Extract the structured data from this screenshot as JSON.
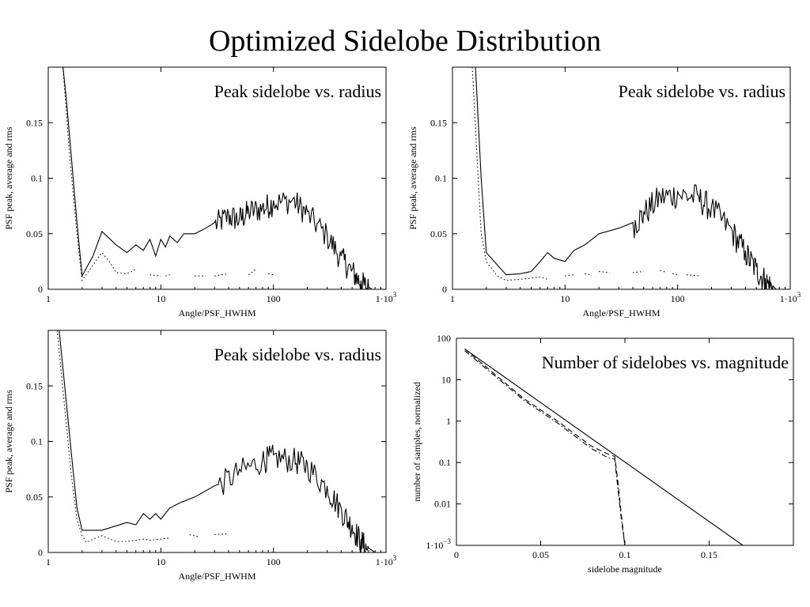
{
  "page": {
    "title": "Optimized Sidelobe Distribution"
  },
  "chart_data": [
    {
      "type": "line",
      "title": "Peak sidelobe vs. radius",
      "xlabel": "Angle/PSF_HWHM",
      "ylabel": "PSF peak, average and rms",
      "x_scale": "log",
      "xlim": [
        1,
        1000
      ],
      "ylim": [
        0,
        0.2
      ],
      "x_ticks": [
        1,
        10,
        100,
        1000
      ],
      "x_tick_labels": [
        "1",
        "10",
        "100",
        "1·10"
      ],
      "x_tick_exponents": [
        "",
        "",
        "",
        "3"
      ],
      "y_ticks": [
        0,
        0.05,
        0.1,
        0.15
      ],
      "y_tick_labels": [
        "0",
        "0.05",
        "0.1",
        "0.15"
      ],
      "grid": false,
      "series": [
        {
          "style": "solid",
          "values": [
            [
              1.35,
              0.2
            ],
            [
              1.45,
              0.17
            ],
            [
              1.6,
              0.12
            ],
            [
              1.8,
              0.06
            ],
            [
              2,
              0.012
            ],
            [
              2.5,
              0.03
            ],
            [
              3,
              0.052
            ],
            [
              4,
              0.04
            ],
            [
              5,
              0.033
            ],
            [
              6,
              0.04
            ],
            [
              7,
              0.035
            ],
            [
              8,
              0.045
            ],
            [
              9,
              0.03
            ],
            [
              10,
              0.045
            ],
            [
              11,
              0.038
            ],
            [
              12,
              0.048
            ],
            [
              14,
              0.042
            ],
            [
              16,
              0.05
            ],
            [
              20,
              0.05
            ],
            [
              25,
              0.055
            ],
            [
              30,
              0.06
            ],
            [
              40,
              0.068
            ],
            [
              50,
              0.065
            ],
            [
              60,
              0.072
            ],
            [
              80,
              0.075
            ],
            [
              100,
              0.08
            ],
            [
              150,
              0.082
            ],
            [
              200,
              0.07
            ],
            [
              300,
              0.05
            ],
            [
              400,
              0.03
            ],
            [
              500,
              0.018
            ],
            [
              600,
              0.008
            ],
            [
              700,
              0.002
            ],
            [
              750,
              0
            ]
          ],
          "noise": {
            "from": 30,
            "to": 700,
            "amplitude": 0.012
          }
        },
        {
          "style": "dotted",
          "values": [
            [
              1.35,
              0.2
            ],
            [
              1.55,
              0.12
            ],
            [
              1.8,
              0.05
            ],
            [
              2,
              0.008
            ],
            [
              2.5,
              0.022
            ],
            [
              3,
              0.033
            ],
            [
              3.5,
              0.025
            ],
            [
              4,
              0.015
            ],
            [
              5,
              0.014
            ],
            [
              6,
              0.018
            ]
          ],
          "fragments": [
            [
              [
                8,
                0.013
              ],
              [
                10,
                0.012
              ]
            ],
            [
              [
                11,
                0.012
              ],
              [
                12,
                0.013
              ]
            ],
            [
              [
                20,
                0.012
              ],
              [
                25,
                0.012
              ]
            ],
            [
              [
                30,
                0.012
              ],
              [
                40,
                0.014
              ]
            ],
            [
              [
                60,
                0.013
              ],
              [
                70,
                0.018
              ]
            ],
            [
              [
                90,
                0.014
              ],
              [
                100,
                0.013
              ]
            ]
          ]
        }
      ]
    },
    {
      "type": "line",
      "title": "Peak sidelobe vs. radius",
      "xlabel": "Angle/PSF_HWHM",
      "ylabel": "PSF peak, average and rms",
      "x_scale": "log",
      "xlim": [
        1,
        1000
      ],
      "ylim": [
        0,
        0.2
      ],
      "x_ticks": [
        1,
        10,
        100,
        1000
      ],
      "x_tick_labels": [
        "1",
        "10",
        "100",
        "1·10"
      ],
      "x_tick_exponents": [
        "",
        "",
        "",
        "3"
      ],
      "y_ticks": [
        0,
        0.05,
        0.1,
        0.15
      ],
      "y_tick_labels": [
        "0",
        "0.05",
        "0.1",
        "0.15"
      ],
      "grid": false,
      "series": [
        {
          "style": "solid",
          "values": [
            [
              1.6,
              0.2
            ],
            [
              1.8,
              0.1
            ],
            [
              2,
              0.033
            ],
            [
              2.5,
              0.022
            ],
            [
              3,
              0.013
            ],
            [
              4,
              0.014
            ],
            [
              5,
              0.016
            ],
            [
              6,
              0.025
            ],
            [
              7,
              0.033
            ],
            [
              8,
              0.028
            ],
            [
              10,
              0.025
            ],
            [
              12,
              0.035
            ],
            [
              15,
              0.04
            ],
            [
              20,
              0.05
            ],
            [
              30,
              0.055
            ],
            [
              40,
              0.06
            ],
            [
              50,
              0.07
            ],
            [
              70,
              0.085
            ],
            [
              100,
              0.088
            ],
            [
              150,
              0.085
            ],
            [
              200,
              0.075
            ],
            [
              300,
              0.055
            ],
            [
              400,
              0.035
            ],
            [
              500,
              0.02
            ],
            [
              600,
              0.01
            ],
            [
              700,
              0.003
            ],
            [
              750,
              0
            ]
          ],
          "noise": {
            "from": 40,
            "to": 700,
            "amplitude": 0.013
          }
        },
        {
          "style": "dotted",
          "values": [
            [
              1.5,
              0.2
            ],
            [
              1.65,
              0.12
            ],
            [
              1.8,
              0.05
            ],
            [
              2,
              0.025
            ],
            [
              2.5,
              0.012
            ],
            [
              3,
              0.008
            ],
            [
              4,
              0.009
            ],
            [
              5,
              0.01
            ],
            [
              6,
              0.011
            ],
            [
              7,
              0.009
            ]
          ],
          "fragments": [
            [
              [
                10,
                0.012
              ],
              [
                12,
                0.013
              ]
            ],
            [
              [
                15,
                0.014
              ],
              [
                17,
                0.013
              ]
            ],
            [
              [
                20,
                0.016
              ],
              [
                25,
                0.015
              ]
            ],
            [
              [
                40,
                0.015
              ],
              [
                50,
                0.016
              ]
            ],
            [
              [
                70,
                0.017
              ],
              [
                80,
                0.015
              ]
            ],
            [
              [
                90,
                0.014
              ],
              [
                100,
                0.013
              ]
            ],
            [
              [
                120,
                0.013
              ],
              [
                160,
                0.012
              ]
            ]
          ]
        }
      ]
    },
    {
      "type": "line",
      "title": "Peak sidelobe vs. radius",
      "xlabel": "Angle/PSF_HWHM",
      "ylabel": "PSF peak, average and rms",
      "x_scale": "log",
      "xlim": [
        1,
        1000
      ],
      "ylim": [
        0,
        0.2
      ],
      "x_ticks": [
        1,
        10,
        100,
        1000
      ],
      "x_tick_labels": [
        "1",
        "10",
        "100",
        "1·10"
      ],
      "x_tick_exponents": [
        "",
        "",
        "",
        "3"
      ],
      "y_ticks": [
        0,
        0.05,
        0.1,
        0.15
      ],
      "y_tick_labels": [
        "0",
        "0.05",
        "0.1",
        "0.15"
      ],
      "grid": false,
      "series": [
        {
          "style": "solid",
          "values": [
            [
              1.25,
              0.2
            ],
            [
              1.4,
              0.15
            ],
            [
              1.6,
              0.09
            ],
            [
              1.8,
              0.04
            ],
            [
              2,
              0.02
            ],
            [
              3,
              0.02
            ],
            [
              4,
              0.024
            ],
            [
              5,
              0.027
            ],
            [
              6,
              0.025
            ],
            [
              7,
              0.035
            ],
            [
              8,
              0.03
            ],
            [
              9,
              0.035
            ],
            [
              10,
              0.03
            ],
            [
              12,
              0.04
            ],
            [
              15,
              0.045
            ],
            [
              20,
              0.05
            ],
            [
              30,
              0.06
            ],
            [
              50,
              0.075
            ],
            [
              80,
              0.085
            ],
            [
              100,
              0.088
            ],
            [
              150,
              0.085
            ],
            [
              200,
              0.08
            ],
            [
              300,
              0.06
            ],
            [
              400,
              0.04
            ],
            [
              500,
              0.025
            ],
            [
              600,
              0.012
            ],
            [
              700,
              0.004
            ],
            [
              800,
              0
            ]
          ],
          "noise": {
            "from": 25,
            "to": 750,
            "amplitude": 0.012
          }
        },
        {
          "style": "dotted",
          "values": [
            [
              1.2,
              0.2
            ],
            [
              1.4,
              0.13
            ],
            [
              1.6,
              0.07
            ],
            [
              1.8,
              0.03
            ],
            [
              2,
              0.015
            ],
            [
              2.2,
              0.009
            ],
            [
              2.5,
              0.012
            ],
            [
              3,
              0.015
            ],
            [
              4,
              0.01
            ],
            [
              5,
              0.01
            ],
            [
              6,
              0.011
            ],
            [
              7,
              0.012
            ],
            [
              8,
              0.011
            ],
            [
              10,
              0.012
            ],
            [
              12,
              0.013
            ]
          ],
          "fragments": [
            [
              [
                18,
                0.016
              ],
              [
                22,
                0.014
              ]
            ],
            [
              [
                30,
                0.016
              ],
              [
                40,
                0.017
              ]
            ]
          ]
        }
      ]
    },
    {
      "type": "line",
      "title": "Number of sidelobes vs. magnitude",
      "xlabel": "sidelobe magnitude",
      "ylabel": "number of samples, normalized",
      "y_scale": "log",
      "xlim": [
        0,
        0.2
      ],
      "ylim": [
        0.001,
        100
      ],
      "x_ticks": [
        0,
        0.05,
        0.1,
        0.15
      ],
      "x_tick_labels": [
        "0",
        "0.05",
        "0.1",
        "0.15"
      ],
      "y_ticks": [
        0.001,
        0.01,
        0.1,
        1,
        10,
        100
      ],
      "y_tick_labels": [
        "1·10",
        "0.01",
        "0.1",
        "1",
        "10",
        "100"
      ],
      "y_tick_exponents": [
        "−3",
        "",
        "",
        "",
        "",
        ""
      ],
      "grid": false,
      "series": [
        {
          "style": "solid",
          "values": [
            [
              0.005,
              55
            ],
            [
              0.17,
              0.001
            ]
          ]
        },
        {
          "style": "dashed",
          "values": [
            [
              0.005,
              55
            ],
            [
              0.04,
              3.5
            ],
            [
              0.06,
              1.0
            ],
            [
              0.08,
              0.25
            ],
            [
              0.09,
              0.16
            ],
            [
              0.094,
              0.14
            ],
            [
              0.096,
              0.03
            ],
            [
              0.098,
              0.005
            ],
            [
              0.1,
              0.001
            ]
          ]
        },
        {
          "style": "dashdot",
          "values": [
            [
              0.005,
              50
            ],
            [
              0.04,
              3.2
            ],
            [
              0.06,
              0.9
            ],
            [
              0.08,
              0.22
            ],
            [
              0.09,
              0.13
            ],
            [
              0.094,
              0.12
            ],
            [
              0.096,
              0.02
            ],
            [
              0.098,
              0.004
            ],
            [
              0.1,
              0.001
            ]
          ]
        }
      ]
    }
  ]
}
